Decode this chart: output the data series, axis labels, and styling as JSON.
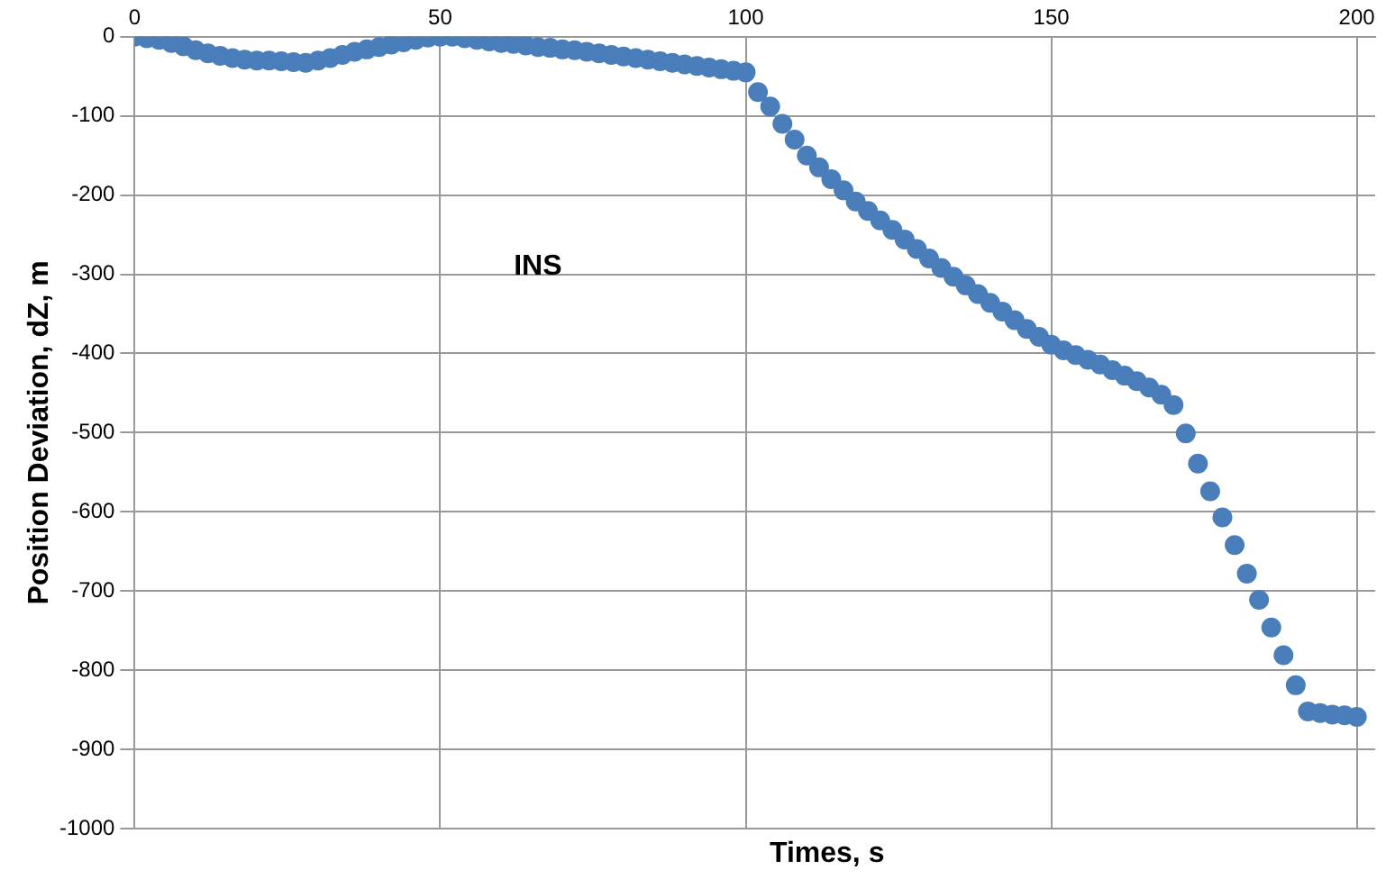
{
  "chart_data": {
    "type": "scatter",
    "xlabel": "Times, s",
    "ylabel": "Position Deviation, dZ, m",
    "annotations": [
      "INS"
    ],
    "x": [
      0,
      2,
      4,
      6,
      8,
      10,
      12,
      14,
      16,
      18,
      20,
      22,
      24,
      26,
      28,
      30,
      32,
      34,
      36,
      38,
      40,
      42,
      44,
      46,
      48,
      50,
      52,
      54,
      56,
      58,
      60,
      62,
      64,
      66,
      68,
      70,
      72,
      74,
      76,
      78,
      80,
      82,
      84,
      86,
      88,
      90,
      92,
      94,
      96,
      98,
      100,
      102,
      104,
      106,
      108,
      110,
      112,
      114,
      116,
      118,
      120,
      122,
      124,
      126,
      128,
      130,
      132,
      134,
      136,
      138,
      140,
      142,
      144,
      146,
      148,
      150,
      152,
      154,
      156,
      158,
      160,
      162,
      164,
      166,
      168,
      170,
      172,
      174,
      176,
      178,
      180,
      182,
      184,
      186,
      188,
      190,
      192,
      194,
      196,
      198,
      200
    ],
    "series": [
      {
        "color": "#4a7ebb",
        "values": [
          0,
          -2,
          -4,
          -8,
          -12,
          -17,
          -21,
          -24,
          -27,
          -29,
          -30,
          -30,
          -31,
          -32,
          -33,
          -30,
          -27,
          -23,
          -19,
          -16,
          -13,
          -10,
          -7,
          -4,
          -1,
          0,
          0,
          -2,
          -4,
          -6,
          -8,
          -9,
          -11,
          -13,
          -14,
          -16,
          -17,
          -19,
          -21,
          -23,
          -25,
          -27,
          -29,
          -31,
          -33,
          -35,
          -37,
          -39,
          -41,
          -43,
          -45,
          -70,
          -88,
          -110,
          -130,
          -150,
          -165,
          -180,
          -194,
          -208,
          -220,
          -232,
          -244,
          -256,
          -268,
          -280,
          -292,
          -303,
          -314,
          -325,
          -336,
          -347,
          -358,
          -369,
          -379,
          -389,
          -396,
          -402,
          -408,
          -414,
          -421,
          -428,
          -435,
          -443,
          -452,
          -465,
          -501,
          -539,
          -574,
          -607,
          -642,
          -678,
          -711,
          -746,
          -781,
          -819,
          -852,
          -854,
          -856,
          -857,
          -859
        ]
      }
    ],
    "xlim": [
      0,
      203
    ],
    "xticks": [
      0,
      50,
      100,
      150,
      200
    ],
    "ylim": [
      -1000,
      0
    ],
    "yticks": [
      -1000,
      -900,
      -800,
      -700,
      -600,
      -500,
      -400,
      -300,
      -200,
      -100,
      0
    ],
    "grid": true,
    "marker": "circle"
  }
}
